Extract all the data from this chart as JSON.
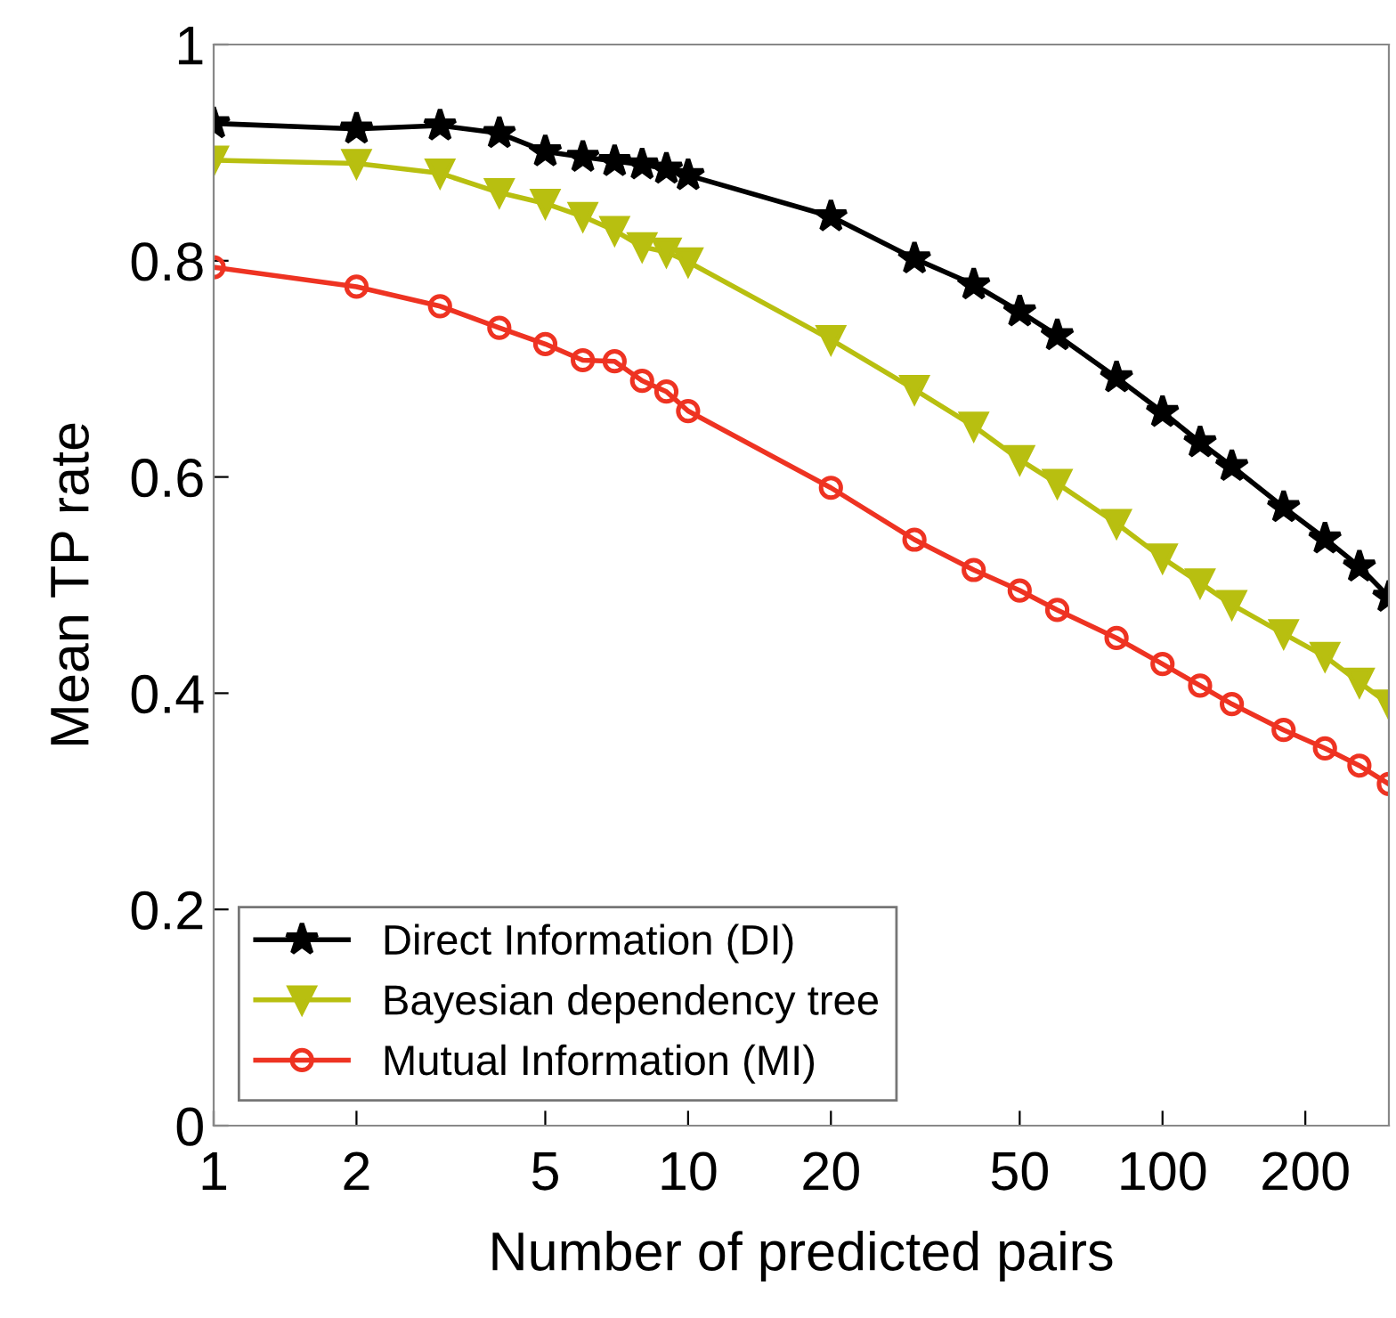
{
  "chart_data": {
    "type": "line",
    "xlabel": "Number of predicted pairs",
    "ylabel": "Mean TP rate",
    "log": "x",
    "xlim": [
      1,
      300
    ],
    "xticks": [
      1,
      2,
      5,
      10,
      20,
      50,
      100,
      200
    ],
    "ylim": [
      0,
      1
    ],
    "yticks": [
      0,
      0.2,
      0.4,
      0.6,
      0.8,
      1
    ],
    "grid": false,
    "legend": "bottom left",
    "line_style": "solid",
    "x": [
      1,
      2,
      3,
      4,
      5,
      6,
      7,
      8,
      9,
      10,
      20,
      30,
      40,
      50,
      60,
      80,
      100,
      120,
      140,
      180,
      220,
      260,
      300
    ],
    "series": [
      {
        "name": "Direct Information (DI)",
        "color": "#000000",
        "marker": "star",
        "values": [
          0.927,
          0.922,
          0.925,
          0.918,
          0.901,
          0.896,
          0.892,
          0.889,
          0.885,
          0.879,
          0.841,
          0.802,
          0.778,
          0.753,
          0.731,
          0.692,
          0.66,
          0.632,
          0.61,
          0.572,
          0.543,
          0.517,
          0.489
        ]
      },
      {
        "name": "Bayesian dependency tree",
        "color": "#b8bf10",
        "marker": "triangle",
        "values": [
          0.893,
          0.89,
          0.881,
          0.863,
          0.853,
          0.841,
          0.828,
          0.813,
          0.808,
          0.799,
          0.727,
          0.681,
          0.647,
          0.616,
          0.594,
          0.557,
          0.525,
          0.502,
          0.482,
          0.455,
          0.434,
          0.41,
          0.39
        ]
      },
      {
        "name": "Mutual Information (MI)",
        "color": "#ee3322",
        "marker": "circle",
        "values": [
          0.794,
          0.776,
          0.758,
          0.738,
          0.723,
          0.708,
          0.707,
          0.689,
          0.679,
          0.661,
          0.59,
          0.542,
          0.514,
          0.495,
          0.477,
          0.451,
          0.427,
          0.407,
          0.39,
          0.366,
          0.349,
          0.333,
          0.316
        ]
      }
    ]
  }
}
